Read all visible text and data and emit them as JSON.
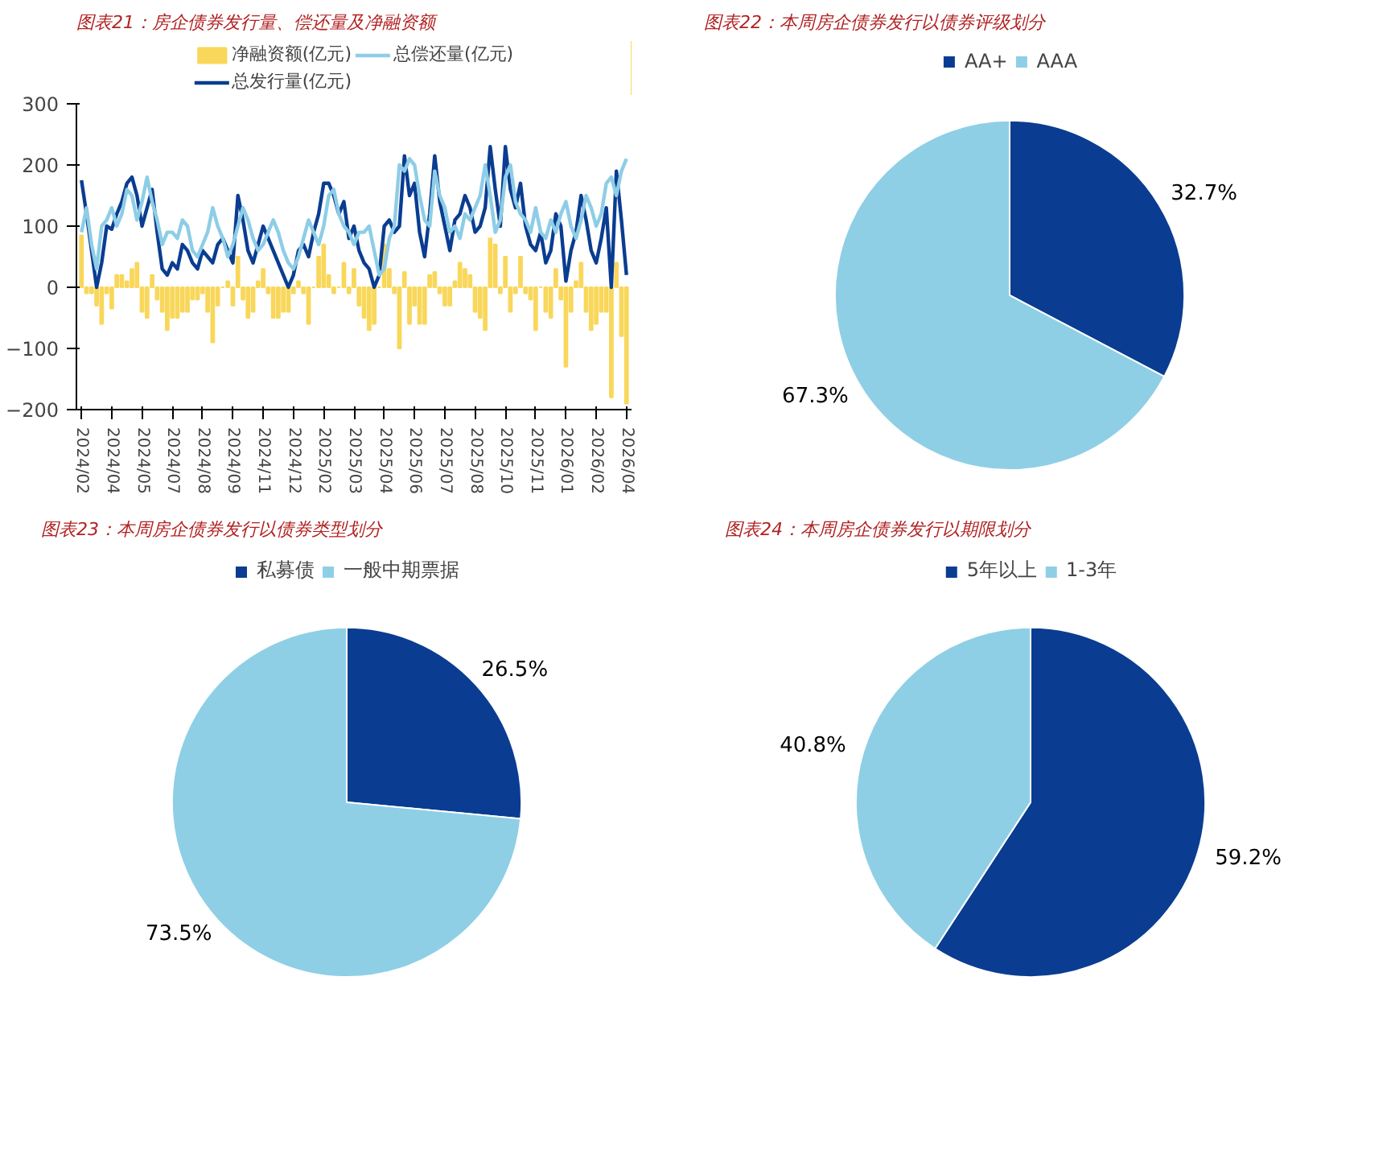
{
  "chart_data": [
    {
      "type": "line",
      "title": "图表21：房企债券发行量、偿还量及净融资额",
      "categories": [
        "2024/02",
        null,
        null,
        null,
        null,
        null,
        "2024/04",
        null,
        null,
        null,
        null,
        null,
        "2024/05",
        null,
        null,
        null,
        null,
        null,
        "2024/07",
        null,
        null,
        null,
        null,
        null,
        "2024/08",
        null,
        null,
        null,
        null,
        null,
        "2024/09",
        null,
        null,
        null,
        null,
        null,
        "2024/11",
        null,
        null,
        null,
        null,
        null,
        "2024/12",
        null,
        null,
        null,
        null,
        null,
        "2025/02",
        null,
        null,
        null,
        null,
        null,
        "2025/03",
        null,
        null,
        null,
        null,
        null,
        "2025/04",
        null,
        null,
        null,
        null,
        null,
        "2025/06",
        null,
        null,
        null,
        null,
        null,
        "2025/07",
        null,
        null,
        null,
        null,
        null,
        "2025/08",
        null,
        null,
        null,
        null,
        null,
        "2025/10",
        null,
        null,
        null,
        null,
        null,
        "2025/11",
        null,
        null,
        null,
        null,
        null,
        "2026/01",
        null,
        null,
        null,
        null,
        null,
        "2026/02",
        null,
        null,
        null,
        null,
        null,
        "2026/04"
      ],
      "series": [
        {
          "name": "净融资额(亿元)",
          "type": "bar",
          "color": "#f9d75b",
          "values": [
            85,
            -10,
            -10,
            -30,
            -60,
            -10,
            -35,
            20,
            20,
            10,
            30,
            40,
            -40,
            -50,
            20,
            -20,
            -40,
            -70,
            -50,
            -50,
            -40,
            -40,
            -20,
            -20,
            -10,
            -40,
            -90,
            -30,
            0,
            10,
            -30,
            50,
            -20,
            -50,
            -40,
            10,
            30,
            -10,
            -50,
            -50,
            -40,
            -40,
            -10,
            10,
            -10,
            -60,
            0,
            50,
            70,
            20,
            -10,
            0,
            40,
            -10,
            30,
            -30,
            -50,
            -70,
            -60,
            0,
            70,
            30,
            -10,
            -100,
            25,
            -60,
            -30,
            -60,
            -60,
            20,
            25,
            -10,
            -30,
            -30,
            10,
            40,
            30,
            20,
            -40,
            -50,
            -70,
            80,
            70,
            -10,
            50,
            -40,
            -10,
            50,
            -10,
            -20,
            -70,
            0,
            -40,
            -50,
            30,
            -20,
            -130,
            -40,
            10,
            40,
            -40,
            -70,
            -60,
            -40,
            -40,
            -180,
            40,
            -80,
            -190
          ]
        },
        {
          "name": "总发行量(亿元)",
          "type": "line",
          "color": "#0a3d91",
          "values": [
            175,
            120,
            60,
            0,
            40,
            100,
            95,
            120,
            140,
            170,
            180,
            150,
            100,
            130,
            160,
            90,
            30,
            20,
            40,
            30,
            70,
            60,
            40,
            30,
            60,
            50,
            40,
            70,
            80,
            60,
            40,
            150,
            110,
            60,
            40,
            70,
            100,
            80,
            60,
            40,
            20,
            0,
            20,
            60,
            70,
            50,
            90,
            120,
            170,
            170,
            150,
            120,
            140,
            80,
            100,
            60,
            40,
            30,
            0,
            20,
            100,
            110,
            90,
            100,
            215,
            150,
            170,
            90,
            50,
            120,
            215,
            140,
            100,
            60,
            110,
            120,
            150,
            130,
            90,
            100,
            130,
            230,
            160,
            100,
            230,
            160,
            130,
            170,
            100,
            70,
            60,
            90,
            40,
            60,
            120,
            100,
            10,
            60,
            90,
            150,
            110,
            60,
            40,
            80,
            130,
            0,
            190,
            110,
            20
          ]
        },
        {
          "name": "总偿还量(亿元)",
          "type": "line",
          "color": "#8ecde6",
          "values": [
            90,
            130,
            70,
            30,
            100,
            110,
            130,
            100,
            120,
            160,
            150,
            110,
            140,
            180,
            140,
            110,
            70,
            90,
            90,
            80,
            110,
            100,
            60,
            50,
            70,
            90,
            130,
            100,
            80,
            50,
            70,
            100,
            130,
            110,
            80,
            60,
            70,
            90,
            110,
            90,
            60,
            40,
            30,
            50,
            80,
            110,
            90,
            70,
            100,
            150,
            160,
            120,
            100,
            90,
            70,
            90,
            90,
            100,
            60,
            20,
            30,
            80,
            100,
            200,
            190,
            210,
            200,
            150,
            110,
            100,
            190,
            150,
            130,
            90,
            100,
            80,
            120,
            110,
            130,
            150,
            200,
            150,
            90,
            110,
            180,
            200,
            140,
            120,
            110,
            90,
            130,
            90,
            80,
            110,
            90,
            120,
            140,
            100,
            80,
            110,
            150,
            130,
            100,
            120,
            170,
            180,
            150,
            190,
            210
          ]
        }
      ],
      "ylim": [
        -200,
        300
      ],
      "yticks": [
        -200,
        -100,
        0,
        100,
        200,
        300
      ],
      "grid": false,
      "legend": "top"
    },
    {
      "type": "pie",
      "title": "图表22：本周房企债券发行以债券评级划分",
      "categories": [
        "AA+",
        "AAA"
      ],
      "values": [
        32.7,
        67.3
      ],
      "colors": [
        "#0a3d91",
        "#8ecfe6"
      ],
      "value_labels": [
        "32.7%",
        "67.3%"
      ],
      "legend": "top"
    },
    {
      "type": "pie",
      "title": "图表23：本周房企债券发行以债券类型划分",
      "categories": [
        "私募债",
        "一般中期票据"
      ],
      "values": [
        26.5,
        73.5
      ],
      "colors": [
        "#0a3d91",
        "#8ecfe6"
      ],
      "value_labels": [
        "26.5%",
        "73.5%"
      ],
      "legend": "top"
    },
    {
      "type": "pie",
      "title": "图表24：本周房企债券发行以期限划分",
      "categories": [
        "5年以上",
        "1-3年"
      ],
      "values": [
        59.2,
        40.8
      ],
      "colors": [
        "#0a3d91",
        "#8ecfe6"
      ],
      "value_labels": [
        "59.2%",
        "40.8%"
      ],
      "legend": "top"
    }
  ]
}
